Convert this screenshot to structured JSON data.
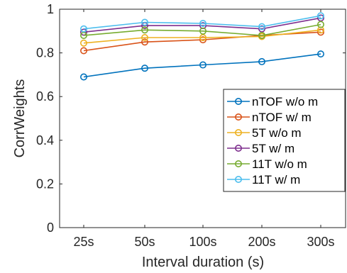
{
  "chart_data": {
    "type": "line",
    "categories": [
      "25s",
      "50s",
      "100s",
      "200s",
      "300s"
    ],
    "xlabel": "Interval duration (s)",
    "ylabel": "CorrWeights",
    "ylim": [
      0,
      1
    ],
    "yticks": [
      0,
      0.2,
      0.4,
      0.6,
      0.8,
      1
    ],
    "ytick_labels": [
      "0",
      "0.2",
      "0.4",
      "0.6",
      "0.8",
      "1"
    ],
    "grid": false,
    "legend_position": "lower-right",
    "marker": "open-circle",
    "series": [
      {
        "name": "nTOF w/o m",
        "color": "#0072BD",
        "values": [
          0.69,
          0.73,
          0.745,
          0.76,
          0.795
        ]
      },
      {
        "name": "nTOF w/ m",
        "color": "#D95319",
        "values": [
          0.81,
          0.85,
          0.86,
          0.88,
          0.895
        ]
      },
      {
        "name": "5T w/o m",
        "color": "#EDB120",
        "values": [
          0.845,
          0.87,
          0.87,
          0.875,
          0.905
        ]
      },
      {
        "name": "5T w/ m",
        "color": "#7E2F8E",
        "values": [
          0.895,
          0.925,
          0.925,
          0.91,
          0.96
        ]
      },
      {
        "name": "11T w/o m",
        "color": "#77AC30",
        "values": [
          0.88,
          0.905,
          0.9,
          0.88,
          0.93
        ]
      },
      {
        "name": "11T w/ m",
        "color": "#4DBEEE",
        "values": [
          0.91,
          0.94,
          0.935,
          0.92,
          0.97
        ]
      }
    ]
  }
}
